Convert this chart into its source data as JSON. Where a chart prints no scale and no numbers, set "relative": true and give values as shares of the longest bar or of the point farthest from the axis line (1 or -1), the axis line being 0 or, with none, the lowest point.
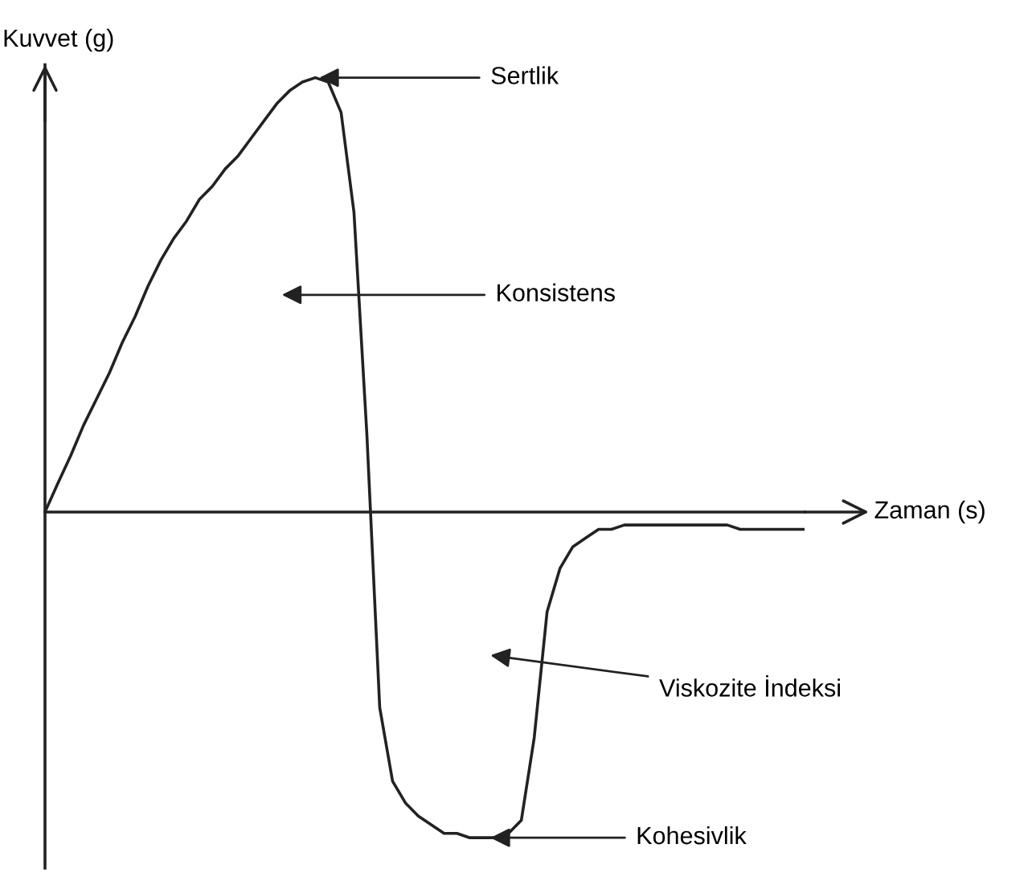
{
  "chart_data": {
    "type": "line",
    "relative": true,
    "xlabel": "Zaman (s)",
    "ylabel": "Kuvvet (g)",
    "legend": false,
    "marker": "none",
    "line_style": "solid",
    "annotations": [
      "Sertlik",
      "Konsistens",
      "Viskozite İndeksi",
      "Kohesivlik"
    ],
    "categories": [
      null,
      null,
      null,
      null,
      null,
      null,
      null,
      null,
      null,
      null,
      null,
      null,
      null,
      null,
      null,
      null,
      null,
      null,
      null,
      null,
      null,
      null,
      null,
      null,
      null,
      null,
      null,
      null,
      null,
      null,
      null,
      null,
      null,
      null,
      null,
      null,
      null,
      null,
      null,
      null,
      null,
      null,
      null,
      null,
      null,
      null,
      null,
      null,
      null,
      null,
      null,
      null,
      null,
      null,
      null,
      null,
      null,
      null,
      null,
      null
    ],
    "series": [
      {
        "color": "#222222",
        "values": [
          0,
          0.066,
          0.13,
          0.2,
          0.26,
          0.32,
          0.39,
          0.45,
          0.52,
          0.58,
          0.63,
          0.67,
          0.72,
          0.75,
          0.79,
          0.82,
          0.86,
          0.9,
          0.94,
          0.97,
          0.99,
          1.0,
          0.99,
          0.92,
          0.69,
          0.18,
          -0.45,
          -0.62,
          -0.67,
          -0.7,
          -0.72,
          -0.74,
          -0.74,
          -0.75,
          -0.75,
          -0.75,
          -0.74,
          -0.71,
          -0.52,
          -0.23,
          -0.13,
          -0.08,
          -0.06,
          -0.04,
          -0.04,
          -0.03,
          -0.03,
          -0.03,
          -0.03,
          -0.03,
          -0.03,
          -0.03,
          -0.03,
          -0.03,
          -0.04,
          -0.04,
          -0.04,
          -0.04,
          -0.04,
          -0.04
        ]
      }
    ]
  }
}
